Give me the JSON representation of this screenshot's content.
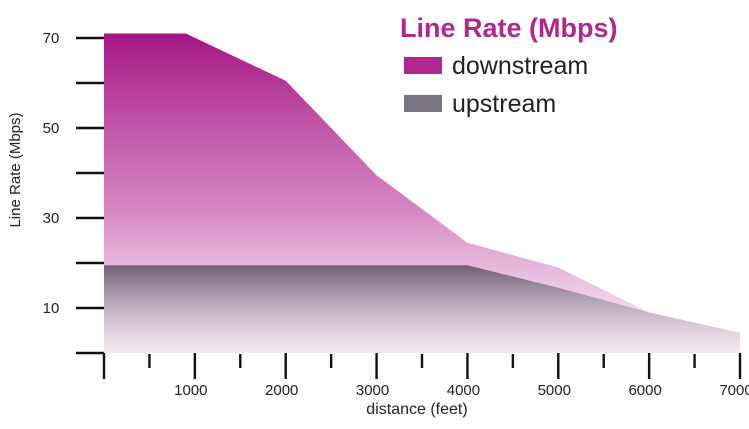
{
  "chart_data": {
    "type": "area",
    "title": "",
    "xlabel": "distance (feet)",
    "ylabel": "Line Rate (Mbps)",
    "xlim": [
      0,
      7000
    ],
    "ylim": [
      0,
      70
    ],
    "x_ticks": [
      1000,
      2000,
      3000,
      4000,
      5000,
      6000,
      7000
    ],
    "y_ticks": [
      10,
      30,
      50,
      70
    ],
    "legend": {
      "title": "Line Rate (Mbps)",
      "placement": "top-right"
    },
    "series": [
      {
        "name": "downstream",
        "color": "#b0288f",
        "points": [
          {
            "x": 0,
            "y": 71
          },
          {
            "x": 900,
            "y": 71
          },
          {
            "x": 2000,
            "y": 60.5
          },
          {
            "x": 3000,
            "y": 39.5
          },
          {
            "x": 4000,
            "y": 24.5
          },
          {
            "x": 5000,
            "y": 19
          },
          {
            "x": 6000,
            "y": 9
          },
          {
            "x": 7000,
            "y": 4.5
          }
        ]
      },
      {
        "name": "upstream",
        "color": "#7a7480",
        "points": [
          {
            "x": 0,
            "y": 19.5
          },
          {
            "x": 4000,
            "y": 19.5
          },
          {
            "x": 5000,
            "y": 14.5
          },
          {
            "x": 6000,
            "y": 9
          },
          {
            "x": 7000,
            "y": 4.5
          }
        ]
      }
    ]
  }
}
